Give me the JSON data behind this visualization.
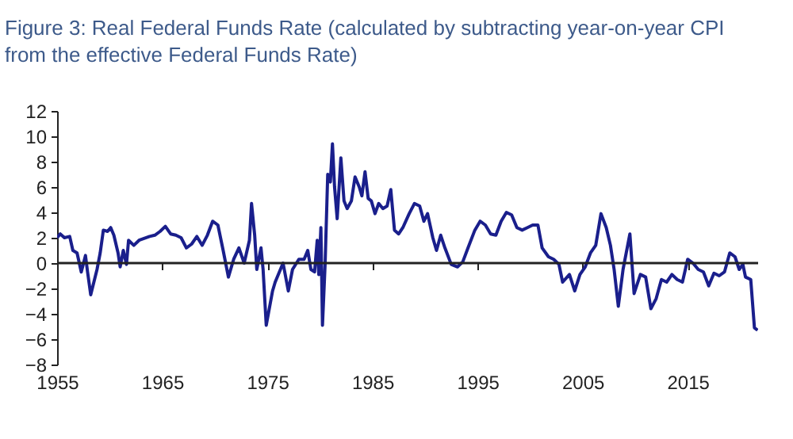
{
  "chart_data": {
    "type": "line",
    "title": "Figure 3: Real Federal Funds Rate (calculated by subtracting year-on-year CPI from the effective Federal Funds Rate)",
    "xlim": [
      1955,
      2021.7
    ],
    "xticks": [
      1955,
      1965,
      1975,
      1985,
      1995,
      2005,
      2015
    ],
    "ylim": [
      -8,
      12
    ],
    "yticks": [
      -8,
      -6,
      -4,
      -2,
      0,
      2,
      4,
      6,
      8,
      10,
      12
    ],
    "grid": false,
    "ref_lines": [
      {
        "axis": "y",
        "value": 0,
        "color": "#222222"
      }
    ],
    "series": [
      {
        "color": "#1a1f8c",
        "x": [
          1955,
          1955.3,
          1955.7,
          1956.2,
          1956.5,
          1956.9,
          1957.3,
          1957.7,
          1957.9,
          1958.2,
          1958.5,
          1958.8,
          1959.1,
          1959.4,
          1959.8,
          1960.1,
          1960.4,
          1960.8,
          1961.0,
          1961.3,
          1961.6,
          1961.8,
          1962.3,
          1962.8,
          1963.8,
          1964.3,
          1964.8,
          1965.3,
          1965.8,
          1966.3,
          1966.8,
          1967.3,
          1967.8,
          1968.3,
          1968.8,
          1969.3,
          1969.8,
          1970.3,
          1970.8,
          1971.3,
          1971.8,
          1972.3,
          1972.8,
          1973.3,
          1973.5,
          1973.8,
          1974.0,
          1974.4,
          1974.6,
          1974.9,
          1975.5,
          1975.75,
          1976.25,
          1976.5,
          1977.0,
          1977.4,
          1978.0,
          1978.5,
          1978.85,
          1979.15,
          1979.5,
          1979.75,
          1979.9,
          1980.1,
          1980.25,
          1980.5,
          1980.75,
          1981.0,
          1981.2,
          1981.4,
          1981.65,
          1982.0,
          1982.3,
          1982.6,
          1983.0,
          1983.35,
          1983.75,
          1984.0,
          1984.3,
          1984.6,
          1984.9,
          1985.25,
          1985.6,
          1986.0,
          1986.4,
          1986.75,
          1987.1,
          1987.5,
          1987.9,
          1988.5,
          1989.0,
          1989.5,
          1989.9,
          1990.25,
          1990.75,
          1991.1,
          1991.5,
          1991.9,
          1992.5,
          1993.1,
          1993.6,
          1994.1,
          1994.75,
          1995.25,
          1995.75,
          1996.25,
          1996.75,
          1997.25,
          1997.75,
          1998.25,
          1998.75,
          1999.25,
          1999.75,
          2000.25,
          2000.75,
          2001.15,
          2001.75,
          2002.25,
          2002.75,
          2003.1,
          2003.75,
          2004.25,
          2004.75,
          2005.25,
          2005.75,
          2006.25,
          2006.75,
          2007.25,
          2007.65,
          2008.0,
          2008.4,
          2008.85,
          2009.5,
          2009.9,
          2010.5,
          2011.0,
          2011.5,
          2012.0,
          2012.5,
          2013.0,
          2013.5,
          2014.0,
          2014.5,
          2015.0,
          2015.5,
          2016.0,
          2016.5,
          2017.0,
          2017.5,
          2018.0,
          2018.5,
          2019.0,
          2019.5,
          2019.9,
          2020.25,
          2020.5,
          2021.0,
          2021.35,
          2021.65
        ],
        "values": [
          2.0,
          2.3,
          2.0,
          2.1,
          1.0,
          0.8,
          -0.7,
          0.6,
          -0.7,
          -2.5,
          -1.5,
          -0.5,
          0.8,
          2.6,
          2.5,
          2.8,
          2.2,
          0.8,
          -0.3,
          1.0,
          -0.1,
          1.8,
          1.4,
          1.8,
          2.1,
          2.2,
          2.5,
          2.9,
          2.3,
          2.2,
          2.0,
          1.2,
          1.5,
          2.1,
          1.4,
          2.2,
          3.3,
          3.0,
          1.0,
          -1.1,
          0.3,
          1.2,
          0,
          1.8,
          4.7,
          2.2,
          -0.5,
          1.2,
          -0.5,
          -4.9,
          -2.2,
          -1.5,
          -0.5,
          0,
          -2.2,
          -0.5,
          0.3,
          0.3,
          1.0,
          -0.5,
          -0.7,
          1.8,
          -0.9,
          2.8,
          -4.9,
          -0.1,
          7.0,
          6.4,
          9.4,
          6.0,
          3.5,
          8.3,
          4.9,
          4.3,
          4.9,
          6.8,
          6.0,
          5.3,
          7.2,
          5.1,
          4.9,
          3.9,
          4.7,
          4.3,
          4.5,
          5.8,
          2.6,
          2.3,
          2.8,
          3.9,
          4.7,
          4.5,
          3.3,
          3.9,
          2.0,
          1.0,
          2.2,
          1.2,
          -0.1,
          -0.3,
          0.1,
          1.2,
          2.6,
          3.3,
          3.0,
          2.3,
          2.2,
          3.3,
          4.0,
          3.8,
          2.8,
          2.6,
          2.8,
          3.0,
          3.0,
          1.2,
          0.5,
          0.3,
          -0.1,
          -1.5,
          -0.9,
          -2.2,
          -0.9,
          -0.3,
          0.8,
          1.4,
          3.9,
          2.8,
          1.4,
          -0.5,
          -3.4,
          -0.5,
          2.3,
          -2.4,
          -0.9,
          -1.1,
          -3.6,
          -2.8,
          -1.3,
          -1.5,
          -0.9,
          -1.3,
          -1.5,
          0.3,
          0,
          -0.5,
          -0.7,
          -1.8,
          -0.8,
          -1.0,
          -0.7,
          0.8,
          0.5,
          -0.5,
          -0.1,
          -1.1,
          -1.3,
          -5.1,
          -5.3
        ]
      }
    ]
  }
}
